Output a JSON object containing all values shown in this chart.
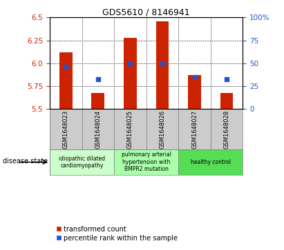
{
  "title": "GDS5610 / 8146941",
  "samples": [
    "GSM1648023",
    "GSM1648024",
    "GSM1648025",
    "GSM1648026",
    "GSM1648027",
    "GSM1648028"
  ],
  "red_values": [
    6.12,
    5.68,
    6.28,
    6.46,
    5.87,
    5.68
  ],
  "blue_values_pct": [
    46,
    33,
    50,
    50,
    35,
    33
  ],
  "ylim": [
    5.5,
    6.5
  ],
  "yticks": [
    5.5,
    5.75,
    6.0,
    6.25,
    6.5
  ],
  "right_yticks": [
    0,
    25,
    50,
    75,
    100
  ],
  "right_ylim": [
    0,
    100
  ],
  "bar_color": "#cc2200",
  "dot_color": "#2255cc",
  "bg_color": "#ffffff",
  "left_label_color": "#cc2200",
  "right_label_color": "#2255cc",
  "disease_groups": [
    {
      "label": "idiopathic dilated\ncardiomyopathy",
      "samples": [
        0,
        1
      ],
      "color": "#ccffcc"
    },
    {
      "label": "pulmonary arterial\nhypertension with\nBMPR2 mutation",
      "samples": [
        2,
        3
      ],
      "color": "#aaffaa"
    },
    {
      "label": "healthy control",
      "samples": [
        4,
        5
      ],
      "color": "#55dd55"
    }
  ],
  "legend_red": "transformed count",
  "legend_blue": "percentile rank within the sample",
  "disease_state_label": "disease state",
  "sample_bg_color": "#cccccc"
}
